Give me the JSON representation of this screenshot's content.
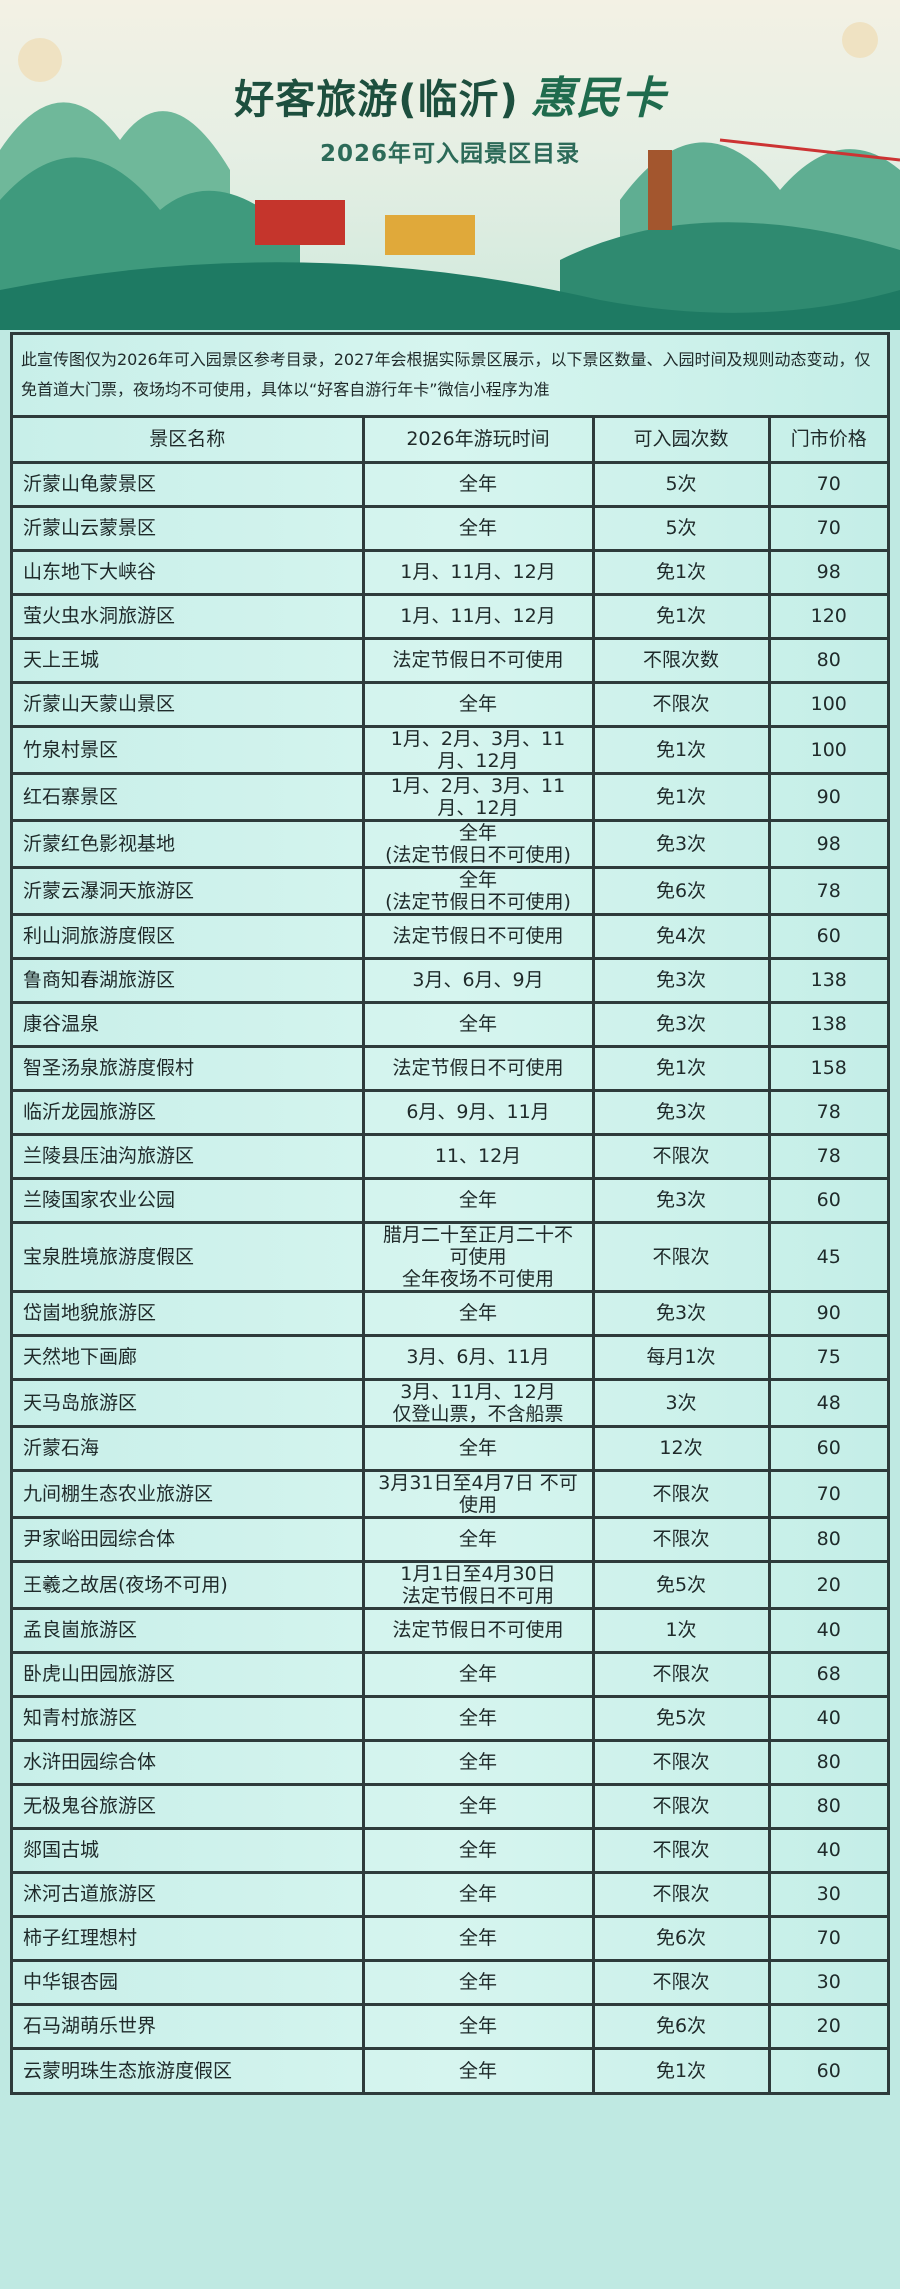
{
  "header": {
    "title": "好客旅游(临沂)",
    "brand": "惠民卡",
    "subtitle": "2026年可入园景区目录"
  },
  "notice": "此宣传图仅为2026年可入园景区参考目录，2027年会根据实际景区展示，以下景区数量、入园时间及规则动态变动，仅免首道大门票，夜场均不可使用，具体以“好客自游行年卡”微信小程序为准",
  "table": {
    "columns": [
      "景区名称",
      "2026年游玩时间",
      "可入园次数",
      "门市价格"
    ],
    "rows": [
      [
        "沂蒙山龟蒙景区",
        "全年",
        "5次",
        "70"
      ],
      [
        "沂蒙山云蒙景区",
        "全年",
        "5次",
        "70"
      ],
      [
        "山东地下大峡谷",
        "1月、11月、12月",
        "免1次",
        "98"
      ],
      [
        "萤火虫水洞旅游区",
        "1月、11月、12月",
        "免1次",
        "120"
      ],
      [
        "天上王城",
        "法定节假日不可使用",
        "不限次数",
        "80"
      ],
      [
        "沂蒙山天蒙山景区",
        "全年",
        "不限次",
        "100"
      ],
      [
        "竹泉村景区",
        "1月、2月、3月、11\n月、12月",
        "免1次",
        "100"
      ],
      [
        "红石寨景区",
        "1月、2月、3月、11\n月、12月",
        "免1次",
        "90"
      ],
      [
        "沂蒙红色影视基地",
        "全年\n(法定节假日不可使用)",
        "免3次",
        "98"
      ],
      [
        "沂蒙云瀑洞天旅游区",
        "全年\n(法定节假日不可使用)",
        "免6次",
        "78"
      ],
      [
        "利山洞旅游度假区",
        "法定节假日不可使用",
        "免4次",
        "60"
      ],
      [
        "鲁商知春湖旅游区",
        "3月、6月、9月",
        "免3次",
        "138"
      ],
      [
        "康谷温泉",
        "全年",
        "免3次",
        "138"
      ],
      [
        "智圣汤泉旅游度假村",
        "法定节假日不可使用",
        "免1次",
        "158"
      ],
      [
        "临沂龙园旅游区",
        "6月、9月、11月",
        "免3次",
        "78"
      ],
      [
        "兰陵县压油沟旅游区",
        "11、12月",
        "不限次",
        "78"
      ],
      [
        "兰陵国家农业公园",
        "全年",
        "免3次",
        "60"
      ],
      [
        "宝泉胜境旅游度假区",
        "腊月二十至正月二十不\n可使用\n全年夜场不可使用",
        "不限次",
        "45"
      ],
      [
        "岱崮地貌旅游区",
        "全年",
        "免3次",
        "90"
      ],
      [
        "天然地下画廊",
        "3月、6月、11月",
        "每月1次",
        "75"
      ],
      [
        "天马岛旅游区",
        "3月、11月、12月\n仅登山票，不含船票",
        "3次",
        "48"
      ],
      [
        "沂蒙石海",
        "全年",
        "12次",
        "60"
      ],
      [
        "九间棚生态农业旅游区",
        "3月31日至4月7日 不可\n使用",
        "不限次",
        "70"
      ],
      [
        "尹家峪田园综合体",
        "全年",
        "不限次",
        "80"
      ],
      [
        "王羲之故居(夜场不可用)",
        "1月1日至4月30日\n法定节假日不可用",
        "免5次",
        "20"
      ],
      [
        "孟良崮旅游区",
        "法定节假日不可使用",
        "1次",
        "40"
      ],
      [
        "卧虎山田园旅游区",
        "全年",
        "不限次",
        "68"
      ],
      [
        "知青村旅游区",
        "全年",
        "免5次",
        "40"
      ],
      [
        "水浒田园综合体",
        "全年",
        "不限次",
        "80"
      ],
      [
        "无极鬼谷旅游区",
        "全年",
        "不限次",
        "80"
      ],
      [
        "郯国古城",
        "全年",
        "不限次",
        "40"
      ],
      [
        "沭河古道旅游区",
        "全年",
        "不限次",
        "30"
      ],
      [
        "柿子红理想村",
        "全年",
        "免6次",
        "70"
      ],
      [
        "中华银杏园",
        "全年",
        "不限次",
        "30"
      ],
      [
        "石马湖萌乐世界",
        "全年",
        "免6次",
        "20"
      ],
      [
        "云蒙明珠生态旅游度假区",
        "全年",
        "免1次",
        "60"
      ]
    ]
  }
}
